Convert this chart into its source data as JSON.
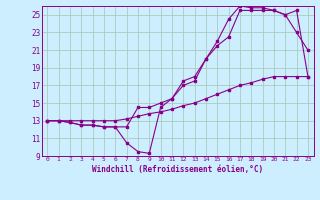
{
  "xlabel": "Windchill (Refroidissement éolien,°C)",
  "background_color": "#cceeff",
  "grid_color": "#aaccbb",
  "line_color": "#880088",
  "xlim": [
    -0.5,
    23.5
  ],
  "ylim": [
    9,
    26
  ],
  "xticks": [
    0,
    1,
    2,
    3,
    4,
    5,
    6,
    7,
    8,
    9,
    10,
    11,
    12,
    13,
    14,
    15,
    16,
    17,
    18,
    19,
    20,
    21,
    22,
    23
  ],
  "yticks": [
    9,
    11,
    13,
    15,
    17,
    19,
    21,
    23,
    25
  ],
  "series1_x": [
    0,
    1,
    2,
    3,
    4,
    5,
    6,
    7,
    8,
    9,
    10,
    11,
    12,
    13,
    14,
    15,
    16,
    17,
    18,
    19,
    20,
    21,
    22,
    23
  ],
  "series1_y": [
    13.0,
    13.0,
    12.8,
    12.5,
    12.5,
    12.3,
    12.3,
    10.5,
    9.5,
    9.3,
    14.5,
    15.5,
    17.5,
    18.0,
    20.0,
    22.0,
    24.5,
    26.0,
    25.8,
    25.8,
    25.5,
    25.0,
    23.0,
    21.0
  ],
  "series2_x": [
    0,
    1,
    2,
    3,
    4,
    5,
    6,
    7,
    8,
    9,
    10,
    11,
    12,
    13,
    14,
    15,
    16,
    17,
    18,
    19,
    20,
    21,
    22,
    23
  ],
  "series2_y": [
    13.0,
    13.0,
    12.8,
    12.5,
    12.5,
    12.3,
    12.3,
    12.3,
    14.5,
    14.5,
    15.0,
    15.5,
    17.0,
    17.5,
    20.0,
    21.5,
    22.5,
    25.5,
    25.5,
    25.5,
    25.5,
    25.0,
    25.5,
    18.0
  ],
  "series3_x": [
    0,
    1,
    2,
    3,
    4,
    5,
    6,
    7,
    8,
    9,
    10,
    11,
    12,
    13,
    14,
    15,
    16,
    17,
    18,
    19,
    20,
    21,
    22,
    23
  ],
  "series3_y": [
    13.0,
    13.0,
    13.0,
    13.0,
    13.0,
    13.0,
    13.0,
    13.2,
    13.5,
    13.8,
    14.0,
    14.3,
    14.7,
    15.0,
    15.5,
    16.0,
    16.5,
    17.0,
    17.3,
    17.7,
    18.0,
    18.0,
    18.0,
    18.0
  ]
}
